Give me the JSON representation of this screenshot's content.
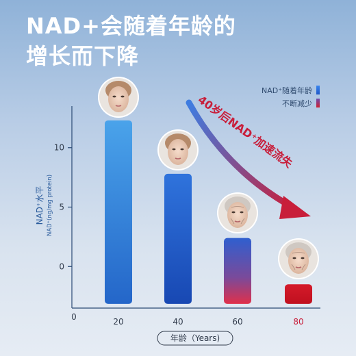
{
  "headline": {
    "line1": "NAD+会随着年龄的",
    "line2": "增长而下降"
  },
  "chart_data": {
    "type": "bar",
    "categories": [
      "20",
      "40",
      "60",
      "80"
    ],
    "values": [
      12.3,
      7.8,
      2.4,
      -1.5
    ],
    "ylabel": "NAD⁺水平",
    "ylabel_sub": "NAD⁺(ng/mg protein)",
    "xlabel": "年龄（Years)",
    "ylim": [
      -3.5,
      13.5
    ],
    "yticks": [
      0,
      5,
      10
    ],
    "x_origin_label": "0",
    "legend": [
      {
        "label": "NAD⁺随着年龄",
        "color": "#2a6fe0"
      },
      {
        "label": "不断减少",
        "color": "#d0202f"
      }
    ],
    "annotation": "40岁后NAD⁺加速流失",
    "highlight_category": "80",
    "highlight_color": "#c81e3a"
  }
}
